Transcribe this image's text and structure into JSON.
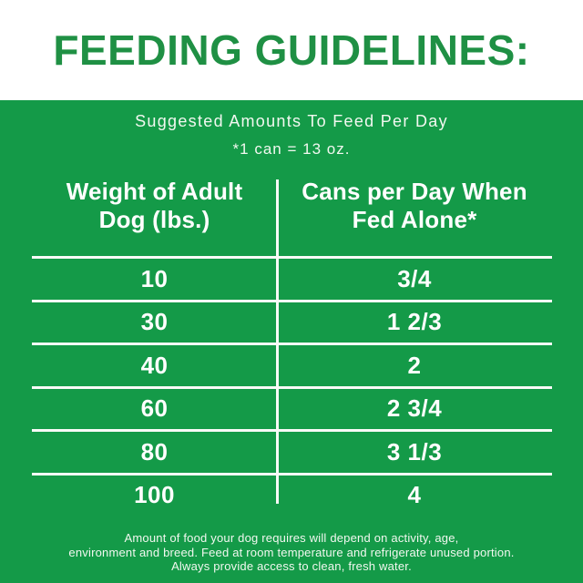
{
  "page": {
    "title": "FEEDING GUIDELINES:",
    "subtitle_line1": "Suggested Amounts To Feed Per Day",
    "subtitle_line2": "*1 can = 13 oz.",
    "footer_line1": "Amount of food your dog requires will depend on activity, age,",
    "footer_line2": "environment and breed. Feed at room temperature and refrigerate unused portion.",
    "footer_line3": "Always provide access to clean, fresh water.",
    "colors": {
      "brand_green": "#149a48",
      "title_green": "#1f9044",
      "text_white": "#ffffff"
    }
  },
  "table": {
    "col1_header_line1": "Weight of Adult",
    "col1_header_line2": "Dog (lbs.)",
    "col2_header_line1": "Cans per Day When",
    "col2_header_line2": "Fed Alone*",
    "rows": [
      {
        "weight": "10",
        "cans": "3/4"
      },
      {
        "weight": "30",
        "cans": "1 2/3"
      },
      {
        "weight": "40",
        "cans": "2"
      },
      {
        "weight": "60",
        "cans": "2 3/4"
      },
      {
        "weight": "80",
        "cans": "3 1/3"
      },
      {
        "weight": "100",
        "cans": "4"
      }
    ]
  },
  "chart_data": {
    "type": "table",
    "title": "Suggested Amounts To Feed Per Day (*1 can = 13 oz.)",
    "columns": [
      "Weight of Adult Dog (lbs.)",
      "Cans per Day When Fed Alone*"
    ],
    "rows": [
      [
        "10",
        "3/4"
      ],
      [
        "30",
        "1 2/3"
      ],
      [
        "40",
        "2"
      ],
      [
        "60",
        "2 3/4"
      ],
      [
        "80",
        "3 1/3"
      ],
      [
        "100",
        "4"
      ]
    ]
  }
}
